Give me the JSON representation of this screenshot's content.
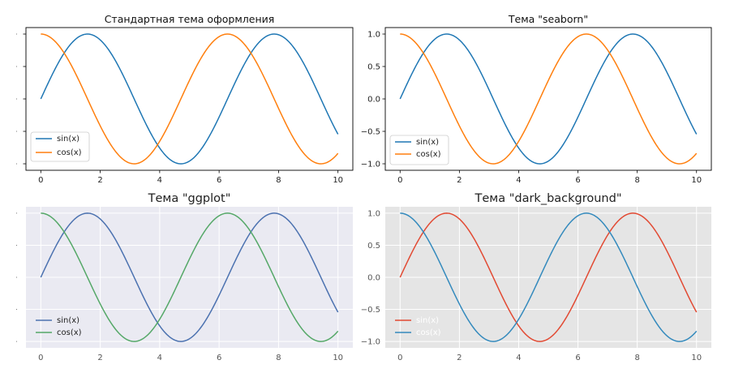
{
  "chart_data": [
    {
      "id": "p1",
      "type": "line",
      "title": "Стандартная тема оформления",
      "xlabel": "",
      "ylabel": "",
      "xlim": [
        -0.5,
        10.5
      ],
      "ylim": [
        -1.1,
        1.1
      ],
      "xticks": [
        "0",
        "2",
        "4",
        "6",
        "8",
        "10"
      ],
      "yticks": [
        "",
        "",
        "",
        "",
        ""
      ],
      "grid": false,
      "legend_location": "lower-left",
      "style": {
        "background": "#ffffff",
        "frame": "#000000",
        "grid_color": ""
      },
      "series": [
        {
          "name": "sin(x)",
          "function": "sin",
          "x_range": [
            0,
            10
          ],
          "color": "#1f77b4"
        },
        {
          "name": "cos(x)",
          "function": "cos",
          "x_range": [
            0,
            10
          ],
          "color": "#ff7f0e"
        }
      ]
    },
    {
      "id": "p2",
      "type": "line",
      "title": "Тема \"seaborn\"",
      "xlabel": "",
      "ylabel": "",
      "xlim": [
        -0.5,
        10.5
      ],
      "ylim": [
        -1.1,
        1.1
      ],
      "xticks": [
        "0",
        "2",
        "4",
        "6",
        "8",
        "10"
      ],
      "yticks": [
        "1.0",
        "0.5",
        "0.0",
        "−0.5",
        "−1.0"
      ],
      "grid": false,
      "legend_location": "lower-left",
      "style": {
        "background": "#ffffff",
        "frame": "#000000",
        "grid_color": ""
      },
      "series": [
        {
          "name": "sin(x)",
          "function": "sin",
          "x_range": [
            0,
            10
          ],
          "color": "#1f77b4"
        },
        {
          "name": "cos(x)",
          "function": "cos",
          "x_range": [
            0,
            10
          ],
          "color": "#ff7f0e"
        }
      ]
    },
    {
      "id": "p3",
      "type": "line",
      "title": "Тема \"ggplot\"",
      "xlabel": "",
      "ylabel": "",
      "xlim": [
        -0.5,
        10.5
      ],
      "ylim": [
        -1.1,
        1.1
      ],
      "xticks": [
        "0",
        "2",
        "4",
        "6",
        "8",
        "10"
      ],
      "yticks": [
        "",
        "",
        "",
        "",
        ""
      ],
      "grid": true,
      "legend_location": "lower-left",
      "style": {
        "background": "#eaeaf2",
        "frame": "",
        "grid_color": "#ffffff"
      },
      "series": [
        {
          "name": "sin(x)",
          "function": "sin",
          "x_range": [
            0,
            10
          ],
          "color": "#4c72b0"
        },
        {
          "name": "cos(x)",
          "function": "cos",
          "x_range": [
            0,
            10
          ],
          "color": "#55a868"
        }
      ]
    },
    {
      "id": "p4",
      "type": "line",
      "title": "Тема \"dark_background\"",
      "xlabel": "",
      "ylabel": "",
      "xlim": [
        -0.5,
        10.5
      ],
      "ylim": [
        -1.1,
        1.1
      ],
      "xticks": [
        "0",
        "2",
        "4",
        "6",
        "8",
        "10"
      ],
      "yticks": [
        "1.0",
        "0.5",
        "0.0",
        "−0.5",
        "−1.0"
      ],
      "grid": true,
      "legend_location": "lower-left",
      "style": {
        "background": "#e5e5e5",
        "frame": "",
        "grid_color": "#ffffff"
      },
      "series": [
        {
          "name": "sin(x)",
          "function": "sin",
          "x_range": [
            0,
            10
          ],
          "color": "#e24a33"
        },
        {
          "name": "cos(x)",
          "function": "cos",
          "x_range": [
            0,
            10
          ],
          "color": "#348abd"
        }
      ]
    }
  ]
}
